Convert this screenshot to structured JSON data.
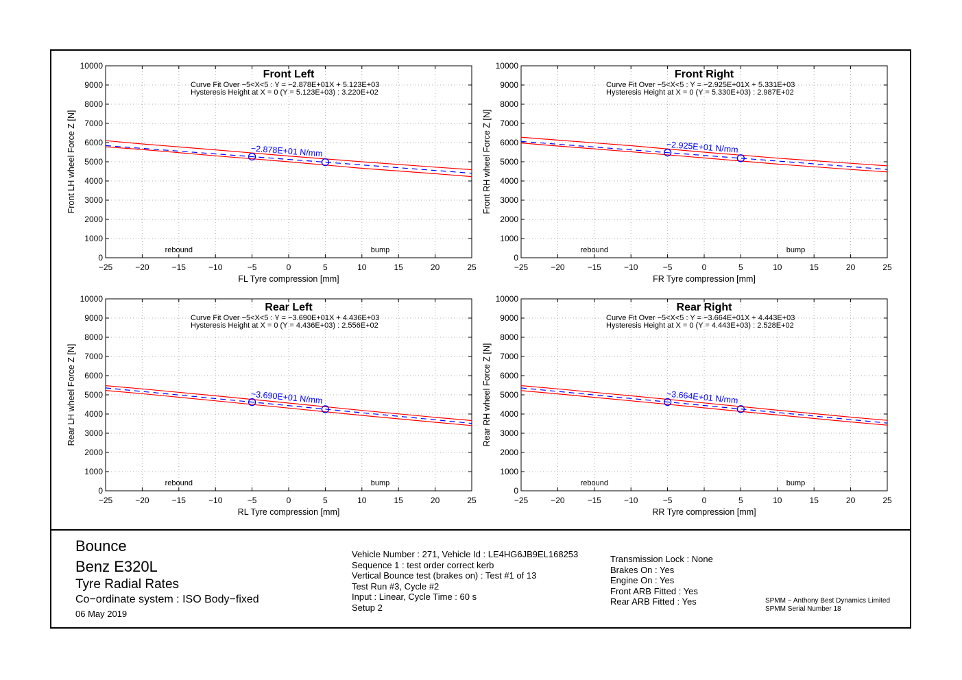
{
  "colors": {
    "band": "#ff0000",
    "fit": "#0000ff",
    "grid": "#b0b0b0",
    "frame": "#000000"
  },
  "chart_data": [
    {
      "type": "line",
      "title": "Front Left",
      "xlabel": "FL Tyre compression [mm]",
      "ylabel": "Front LH wheel Force Z [N]",
      "xlim": [
        -25,
        25
      ],
      "ylim": [
        0,
        10000
      ],
      "xticks": [
        -25,
        -20,
        -15,
        -10,
        -5,
        0,
        5,
        10,
        15,
        20,
        25
      ],
      "yticks": [
        0,
        1000,
        2000,
        3000,
        4000,
        5000,
        6000,
        7000,
        8000,
        9000,
        10000
      ],
      "grid": true,
      "annotations": [
        "Curve Fit Over −5<X<5 : Y = −2.878E+01X + 5.123E+03",
        "Hysteresis Height at X = 0 (Y = 5.123E+03) : 3.220E+02"
      ],
      "slope_label": "−2.878E+01 N/mm",
      "region_labels": [
        "rebound",
        "bump"
      ],
      "slope": -28.78,
      "intercept": 5123,
      "hysteresis": 322,
      "markers": {
        "x": [
          -5,
          5
        ],
        "y": [
          5267,
          4979
        ]
      },
      "series": [
        {
          "x": [
            -25,
            -20,
            -10,
            0,
            10,
            20,
            25
          ],
          "values": [
            6100,
            5930,
            5620,
            5300,
            5000,
            4720,
            4590
          ]
        },
        {
          "x": [
            -25,
            -20,
            -10,
            0,
            10,
            20,
            25
          ],
          "values": [
            5780,
            5640,
            5310,
            5000,
            4660,
            4380,
            4230
          ]
        },
        {
          "x": [
            -25,
            25
          ],
          "values": [
            5843,
            4404
          ]
        }
      ]
    },
    {
      "type": "line",
      "title": "Front Right",
      "xlabel": "FR Tyre compression [mm]",
      "ylabel": "Front RH wheel Force Z [N]",
      "xlim": [
        -25,
        25
      ],
      "ylim": [
        0,
        10000
      ],
      "xticks": [
        -25,
        -20,
        -15,
        -10,
        -5,
        0,
        5,
        10,
        15,
        20,
        25
      ],
      "yticks": [
        0,
        1000,
        2000,
        3000,
        4000,
        5000,
        6000,
        7000,
        8000,
        9000,
        10000
      ],
      "grid": true,
      "annotations": [
        "Curve Fit Over −5<X<5 : Y = −2.925E+01X + 5.331E+03",
        "Hysteresis Height at X = 0 (Y = 5.330E+03) : 2.987E+02"
      ],
      "slope_label": "−2.925E+01 N/mm",
      "region_labels": [
        "rebound",
        "bump"
      ],
      "slope": -29.25,
      "intercept": 5331,
      "hysteresis": 298.7,
      "markers": {
        "x": [
          -5,
          5
        ],
        "y": [
          5477,
          5185
        ]
      },
      "series": [
        {
          "x": [
            -25,
            -20,
            -10,
            0,
            10,
            20,
            25
          ],
          "values": [
            6280,
            6130,
            5840,
            5500,
            5190,
            4920,
            4790
          ]
        },
        {
          "x": [
            -25,
            -20,
            -10,
            0,
            10,
            20,
            25
          ],
          "values": [
            5980,
            5820,
            5520,
            5200,
            4880,
            4600,
            4470
          ]
        },
        {
          "x": [
            -25,
            25
          ],
          "values": [
            6062,
            4600
          ]
        }
      ]
    },
    {
      "type": "line",
      "title": "Rear Left",
      "xlabel": "RL Tyre compression [mm]",
      "ylabel": "Rear LH wheel Force Z [N]",
      "xlim": [
        -25,
        25
      ],
      "ylim": [
        0,
        10000
      ],
      "xticks": [
        -25,
        -20,
        -15,
        -10,
        -5,
        0,
        5,
        10,
        15,
        20,
        25
      ],
      "yticks": [
        0,
        1000,
        2000,
        3000,
        4000,
        5000,
        6000,
        7000,
        8000,
        9000,
        10000
      ],
      "grid": true,
      "annotations": [
        "Curve Fit Over −5<X<5 : Y = −3.690E+01X + 4.436E+03",
        "Hysteresis Height at X = 0 (Y = 4.436E+03) : 2.556E+02"
      ],
      "slope_label": "−3.690E+01 N/mm",
      "region_labels": [
        "rebound",
        "bump"
      ],
      "slope": -36.9,
      "intercept": 4436,
      "hysteresis": 255.6,
      "markers": {
        "x": [
          -5,
          5
        ],
        "y": [
          4620,
          4252
        ]
      },
      "series": [
        {
          "x": [
            -25,
            -20,
            -10,
            0,
            10,
            20,
            25
          ],
          "values": [
            5480,
            5310,
            4950,
            4570,
            4190,
            3830,
            3660
          ]
        },
        {
          "x": [
            -25,
            -20,
            -10,
            0,
            10,
            20,
            25
          ],
          "values": [
            5230,
            5060,
            4690,
            4310,
            3930,
            3570,
            3400
          ]
        },
        {
          "x": [
            -25,
            25
          ],
          "values": [
            5359,
            3514
          ]
        }
      ]
    },
    {
      "type": "line",
      "title": "Rear Right",
      "xlabel": "RR Tyre compression [mm]",
      "ylabel": "Rear RH wheel Force Z [N]",
      "xlim": [
        -25,
        25
      ],
      "ylim": [
        0,
        10000
      ],
      "xticks": [
        -25,
        -20,
        -15,
        -10,
        -5,
        0,
        5,
        10,
        15,
        20,
        25
      ],
      "yticks": [
        0,
        1000,
        2000,
        3000,
        4000,
        5000,
        6000,
        7000,
        8000,
        9000,
        10000
      ],
      "grid": true,
      "annotations": [
        "Curve Fit Over −5<X<5 : Y = −3.664E+01X + 4.443E+03",
        "Hysteresis Height at X = 0 (Y = 4.443E+03) : 2.528E+02"
      ],
      "slope_label": "−3.664E+01 N/mm",
      "region_labels": [
        "rebound",
        "bump"
      ],
      "slope": -36.64,
      "intercept": 4443,
      "hysteresis": 252.8,
      "markers": {
        "x": [
          -5,
          5
        ],
        "y": [
          4626,
          4260
        ]
      },
      "series": [
        {
          "x": [
            -25,
            -20,
            -10,
            0,
            10,
            20,
            25
          ],
          "values": [
            5480,
            5310,
            4950,
            4580,
            4200,
            3840,
            3670
          ]
        },
        {
          "x": [
            -25,
            -20,
            -10,
            0,
            10,
            20,
            25
          ],
          "values": [
            5220,
            5050,
            4690,
            4320,
            3950,
            3590,
            3420
          ]
        },
        {
          "x": [
            -25,
            25
          ],
          "values": [
            5359,
            3527
          ]
        }
      ]
    }
  ],
  "footer": {
    "title1": "Bounce",
    "title2": "Benz E320L",
    "title3": "Tyre Radial Rates",
    "title4": "Co−ordinate system : ISO Body−fixed",
    "date": "06 May 2019",
    "info": [
      "Vehicle Number : 271, Vehicle Id : LE4HG6JB9EL168253",
      "Sequence 1 : test order correct kerb",
      "Vertical Bounce test (brakes on) : Test #1 of 13",
      "Test Run #3, Cycle #2",
      "Input : Linear, Cycle Time : 60 s",
      "Setup 2"
    ],
    "settings": [
      "Transmission Lock : None",
      "Brakes On : Yes",
      "Engine On : Yes",
      "Front ARB Fitted : Yes",
      "Rear ARB Fitted : Yes"
    ],
    "company": "SPMM − Anthony Best Dynamics Limited",
    "serial": "SPMM Serial Number 18"
  }
}
